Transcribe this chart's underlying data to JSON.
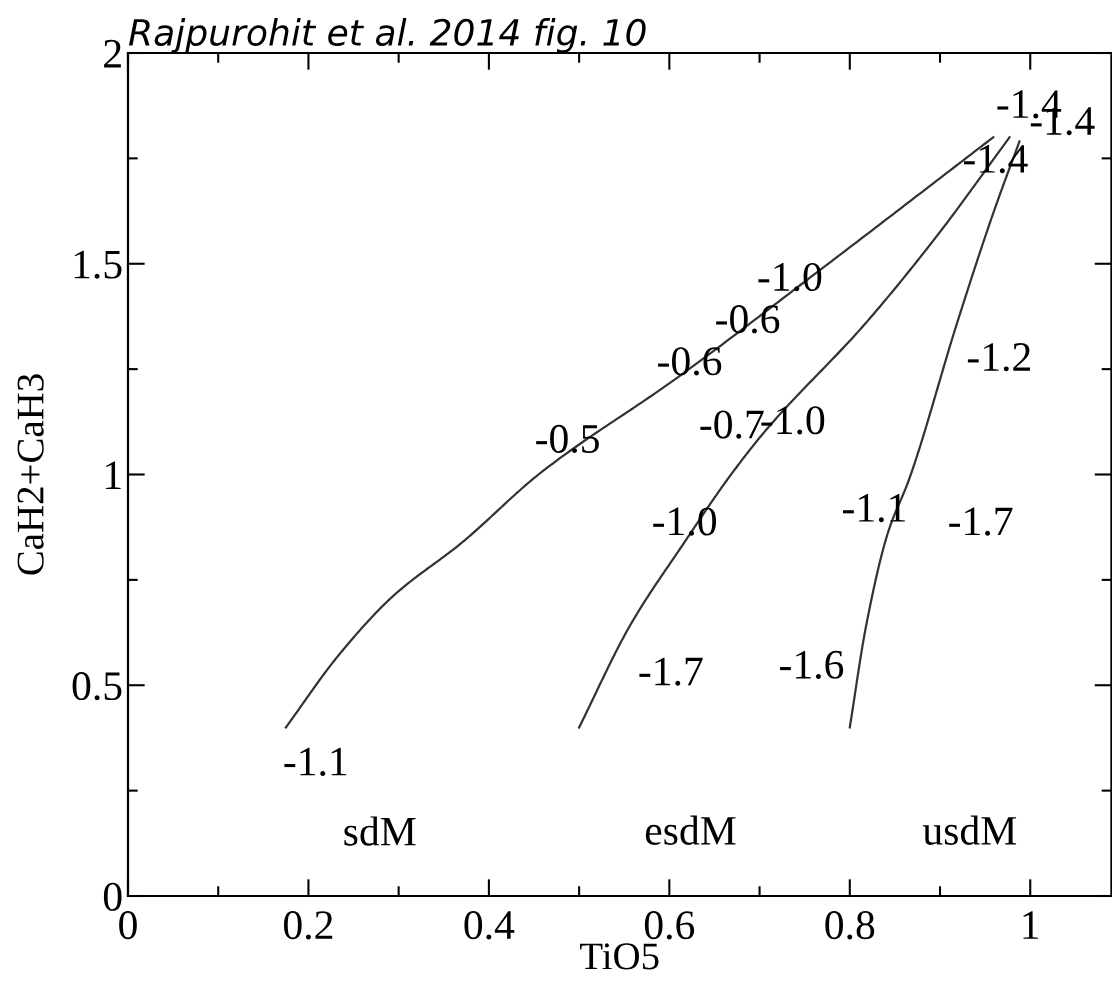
{
  "chart_data": {
    "type": "line",
    "title": "Rajpurohit et al. 2014 fig. 10",
    "xlabel": "TiO5",
    "ylabel": "CaH2+CaH3",
    "xlim": [
      0,
      1.09
    ],
    "ylim": [
      0,
      2
    ],
    "xticks": [
      0,
      0.2,
      0.4,
      0.6,
      0.8,
      1
    ],
    "yticks": [
      0,
      0.5,
      1,
      1.5,
      2
    ],
    "marker": "none",
    "line_style": "solid",
    "grid": false,
    "series": [
      {
        "color": "#333333",
        "x": [
          0.175,
          0.233,
          0.293,
          0.371,
          0.455,
          0.609,
          0.77,
          0.959
        ],
        "values": [
          0.4,
          0.57,
          0.71,
          0.84,
          1.0,
          1.23,
          1.49,
          1.8
        ]
      },
      {
        "color": "#333333",
        "x": [
          0.5,
          0.556,
          0.617,
          0.665,
          0.705,
          0.818,
          0.898,
          0.977
        ],
        "values": [
          0.4,
          0.64,
          0.84,
          0.99,
          1.1,
          1.36,
          1.57,
          1.8
        ]
      },
      {
        "color": "#333333",
        "x": [
          0.8,
          0.818,
          0.842,
          0.866,
          0.919,
          0.959,
          0.988
        ],
        "values": [
          0.4,
          0.64,
          0.86,
          0.99,
          1.36,
          1.62,
          1.79
        ]
      }
    ],
    "annotations": [
      "-1.1",
      "sdM",
      "esdM",
      "usdM",
      "-1.7",
      "-1.6",
      "-1.0",
      "-1.1",
      "-1.7",
      "-0.5",
      "-0.6",
      "-0.6",
      "-1.0",
      "-0.7",
      "-1.0",
      "-1.2",
      "-1.4",
      "-1.4",
      "-1.4"
    ]
  }
}
